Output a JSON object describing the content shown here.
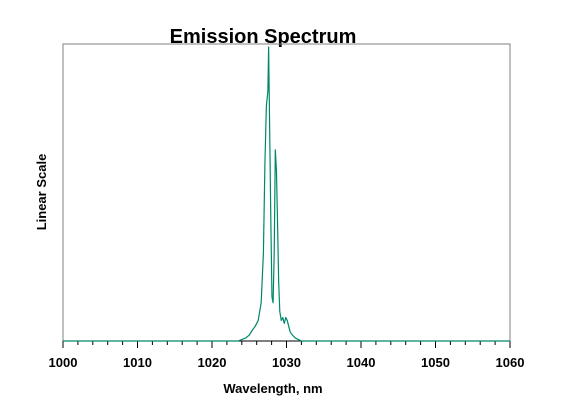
{
  "chart_data": {
    "type": "line",
    "title": "Emission Spectrum",
    "xlabel": "Wavelength, nm",
    "ylabel": "Linear Scale",
    "xlim": [
      1000,
      1060
    ],
    "ylim": [
      0,
      1
    ],
    "x_ticks": [
      "1000",
      "1010",
      "1020",
      "1030",
      "1040",
      "1050",
      "1060"
    ],
    "y_ticks_shown": false,
    "grid": false,
    "legend": "none",
    "line_color": "#00876a",
    "series": [
      {
        "x": [
          1000,
          1023.5,
          1024.5,
          1025.0,
          1025.5,
          1025.8,
          1026.2,
          1026.6,
          1026.9,
          1027.1,
          1027.3,
          1027.5,
          1027.6,
          1027.75,
          1027.9,
          1028.05,
          1028.2,
          1028.35,
          1028.5,
          1028.65,
          1028.8,
          1028.95,
          1029.1,
          1029.3,
          1029.5,
          1029.7,
          1029.9,
          1030.1,
          1030.3,
          1030.5,
          1030.8,
          1031.2,
          1032.0,
          1060
        ],
        "y": [
          0,
          0,
          0.01,
          0.02,
          0.04,
          0.05,
          0.07,
          0.13,
          0.3,
          0.6,
          0.8,
          0.85,
          1.0,
          0.7,
          0.4,
          0.15,
          0.13,
          0.3,
          0.65,
          0.58,
          0.4,
          0.2,
          0.1,
          0.07,
          0.08,
          0.06,
          0.08,
          0.07,
          0.05,
          0.03,
          0.02,
          0.01,
          0,
          0
        ]
      }
    ]
  }
}
